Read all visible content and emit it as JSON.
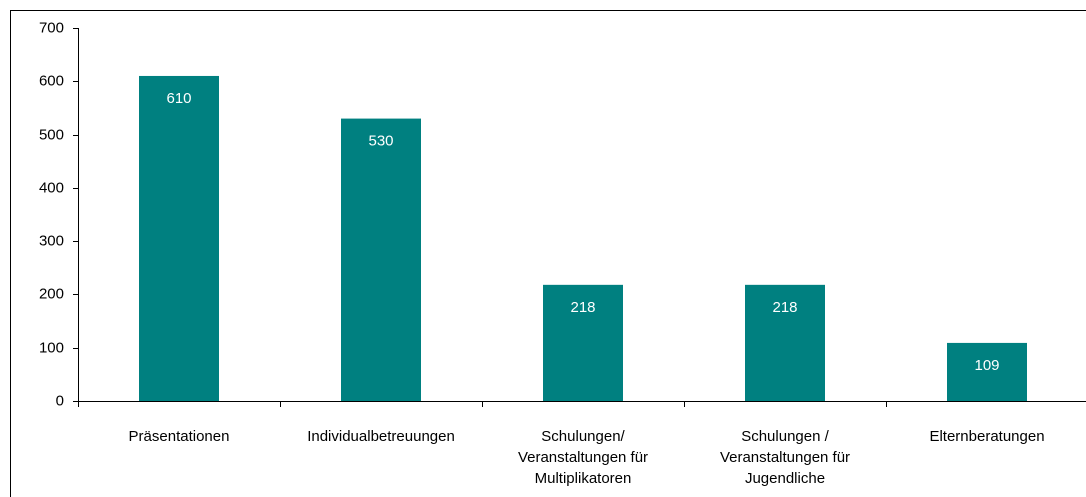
{
  "chart_data": {
    "type": "bar",
    "categories": [
      "Präsentationen",
      "Individualbetreuungen",
      "Schulungen/\nVeranstaltungen für\nMultiplikatoren",
      "Schulungen /\nVeranstaltungen für\nJugendliche",
      "Elternberatungen"
    ],
    "values": [
      610,
      530,
      218,
      218,
      109
    ],
    "color": "#008080",
    "ylim": [
      0,
      700
    ],
    "yticks": [
      0,
      100,
      200,
      300,
      400,
      500,
      600,
      700
    ],
    "grid": false
  }
}
